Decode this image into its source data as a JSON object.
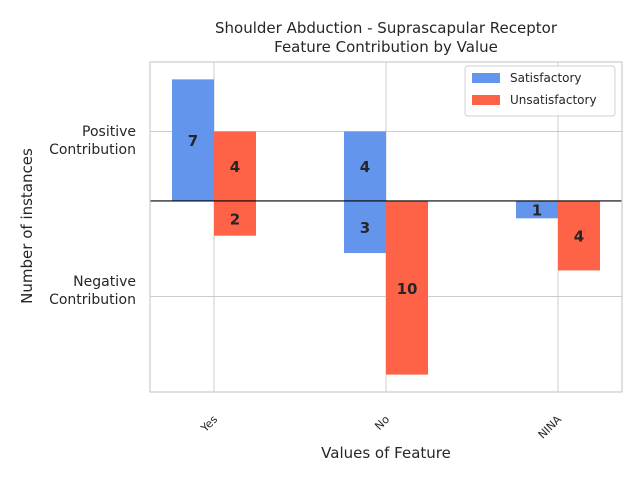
{
  "chart_data": {
    "type": "bar",
    "title_line1": "Shoulder Abduction - Suprascapular Receptor",
    "title_line2": "Feature Contribution by Value",
    "xlabel": "Values of Feature",
    "ylabel": "Number of instances",
    "y_tick_labels": {
      "positive_line1": "Positive",
      "positive_line2": "Contribution",
      "negative_line1": "Negative",
      "negative_line2": "Contribution"
    },
    "categories": [
      "Yes",
      "No",
      "NINA"
    ],
    "series": [
      {
        "name": "Satisfactory",
        "color": "#6495ED",
        "positive": [
          7,
          4,
          0
        ],
        "negative": [
          0,
          3,
          1
        ]
      },
      {
        "name": "Unsatisfactory",
        "color": "#FF6347",
        "positive": [
          4,
          0,
          0
        ],
        "negative": [
          2,
          10,
          4
        ]
      }
    ],
    "ylim": [
      -11,
      8
    ],
    "legend_position": "top-right",
    "grid": true
  }
}
